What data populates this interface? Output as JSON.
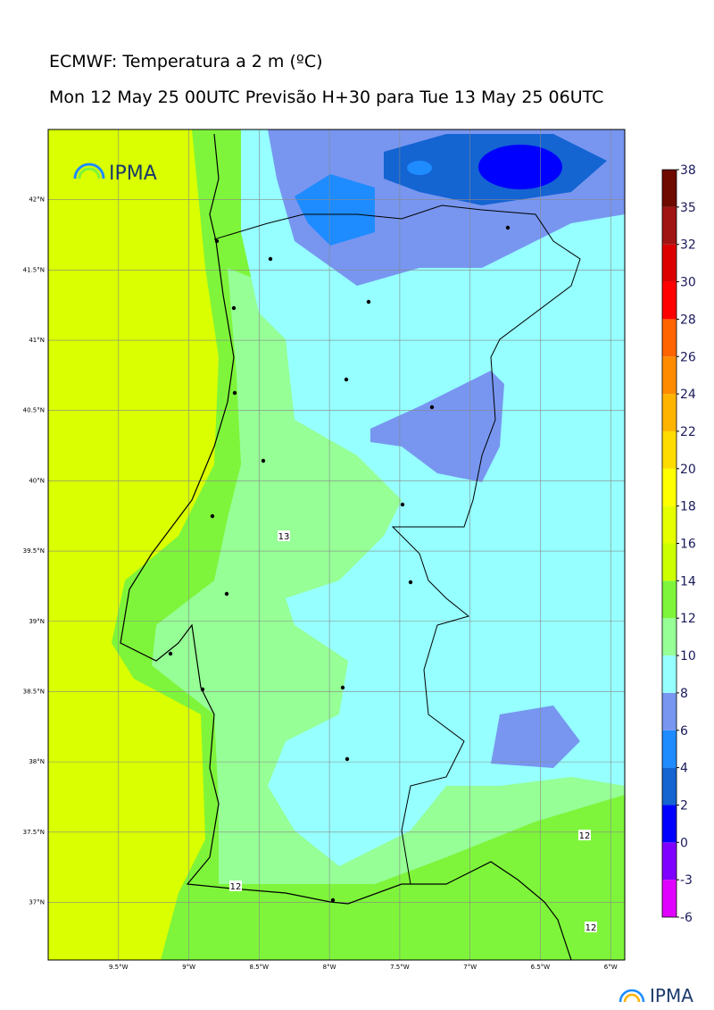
{
  "header": {
    "title": "ECMWF: Temperatura a 2 m (ºC)",
    "subtitle": "Mon 12 May 25 00UTC Previsão H+30 para Tue 13 May 25 06UTC"
  },
  "logo": "IPMA",
  "map": {
    "lon_range": [
      -10,
      -5.9
    ],
    "lat_range": [
      36.59,
      42.5
    ],
    "lon_ticks": [
      {
        "value": -9.5,
        "label": "9.5°W"
      },
      {
        "value": -9,
        "label": "9°W"
      },
      {
        "value": -8.5,
        "label": "8.5°W"
      },
      {
        "value": -8,
        "label": "8°W"
      },
      {
        "value": -7.5,
        "label": "7.5°W"
      },
      {
        "value": -7,
        "label": "7°W"
      },
      {
        "value": -6.5,
        "label": "6.5°W"
      },
      {
        "value": -6,
        "label": "6°W"
      }
    ],
    "lat_ticks": [
      {
        "value": 42,
        "label": "42°N"
      },
      {
        "value": 41.5,
        "label": "41.5°N"
      },
      {
        "value": 41,
        "label": "41°N"
      },
      {
        "value": 40.5,
        "label": "40.5°N"
      },
      {
        "value": 40,
        "label": "40°N"
      },
      {
        "value": 39.5,
        "label": "39.5°N"
      },
      {
        "value": 39,
        "label": "39°N"
      },
      {
        "value": 38.5,
        "label": "38.5°N"
      },
      {
        "value": 38,
        "label": "38°N"
      },
      {
        "value": 37.5,
        "label": "37.5°N"
      },
      {
        "value": 37,
        "label": "37°N"
      }
    ],
    "contour_labels": [
      "13",
      "12",
      "12",
      "12"
    ]
  },
  "colorbar": {
    "levels": [
      -6,
      -3,
      0,
      2,
      4,
      6,
      8,
      10,
      12,
      14,
      16,
      18,
      20,
      22,
      24,
      26,
      28,
      30,
      32,
      35,
      38
    ],
    "colors": [
      "#e000ff",
      "#8000ff",
      "#0000ff",
      "#1464d2",
      "#1e8cff",
      "#7896f0",
      "#96ffff",
      "#96ff96",
      "#7ef53a",
      "#ccff00",
      "#e6ff00",
      "#ffff00",
      "#ffdc00",
      "#ffb400",
      "#ff8c00",
      "#ff6400",
      "#ff0000",
      "#dc0000",
      "#a01414",
      "#6e0a00"
    ]
  }
}
